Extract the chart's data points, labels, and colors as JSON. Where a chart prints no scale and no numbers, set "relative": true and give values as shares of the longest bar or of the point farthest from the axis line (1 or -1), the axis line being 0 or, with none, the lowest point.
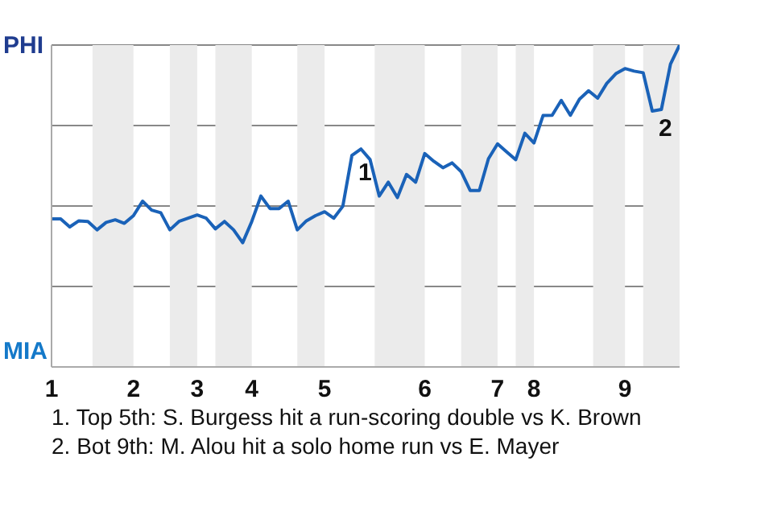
{
  "chart_data": {
    "type": "line",
    "relative": true,
    "categories": [
      "1",
      null,
      null,
      null,
      null,
      null,
      null,
      null,
      null,
      "2",
      null,
      null,
      null,
      null,
      null,
      null,
      "3",
      null,
      null,
      null,
      null,
      null,
      "4",
      null,
      null,
      null,
      null,
      null,
      null,
      null,
      "5",
      null,
      null,
      null,
      null,
      null,
      null,
      null,
      null,
      null,
      null,
      "6",
      null,
      null,
      null,
      null,
      null,
      null,
      null,
      "7",
      null,
      null,
      null,
      "8",
      null,
      null,
      null,
      null,
      null,
      null,
      null,
      null,
      null,
      "9",
      null,
      null,
      null,
      null,
      null,
      null
    ],
    "grid": "y",
    "legend": false,
    "marker": "none",
    "line_style": "solid",
    "series": [
      {
        "color": "#1a62b8",
        "values": [
          0.46,
          0.46,
          0.435,
          0.454,
          0.452,
          0.426,
          0.449,
          0.457,
          0.446,
          0.47,
          0.515,
          0.487,
          0.479,
          0.426,
          0.452,
          0.462,
          0.472,
          0.462,
          0.429,
          0.452,
          0.426,
          0.386,
          0.452,
          0.531,
          0.492,
          0.492,
          0.515,
          0.426,
          0.454,
          0.47,
          0.482,
          0.462,
          0.499,
          0.657,
          0.677,
          0.644,
          0.531,
          0.574,
          0.526,
          0.598,
          0.574,
          0.663,
          0.639,
          0.619,
          0.634,
          0.607,
          0.548,
          0.548,
          0.647,
          0.693,
          0.668,
          0.644,
          0.726,
          0.696,
          0.781,
          0.782,
          0.828,
          0.782,
          0.832,
          0.858,
          0.835,
          0.881,
          0.911,
          0.927,
          0.919,
          0.914,
          0.795,
          0.8,
          0.941,
          1
        ]
      }
    ],
    "annotations": [
      "PHI",
      "MIA",
      {
        "text": "1",
        "y": 0.657
      },
      {
        "text": "2",
        "y": 0.795
      },
      "1. Top 5th: S. Burgess hit a run-scoring double vs K. Brown",
      "2. Bot 9th: M. Alou hit a solo home run vs E. Mayer"
    ]
  }
}
